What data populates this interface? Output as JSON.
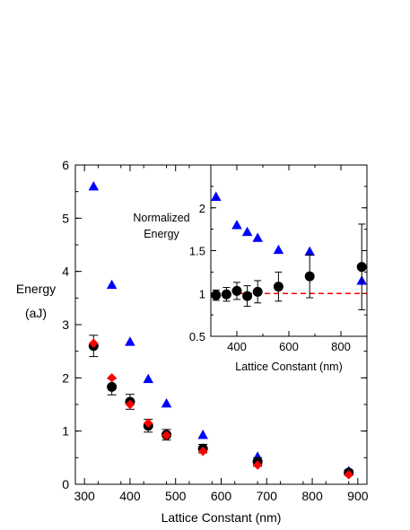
{
  "chart_data": [
    {
      "type": "scatter",
      "title": "",
      "xlabel": "Lattice Constant (nm)",
      "ylabel": [
        "Energy",
        "(aJ)"
      ],
      "xlim": [
        280,
        920
      ],
      "ylim": [
        0,
        6
      ],
      "xticks": [
        "300",
        "400",
        "500",
        "600",
        "700",
        "800",
        "900"
      ],
      "yticks": [
        "0",
        "1",
        "2",
        "3",
        "4",
        "5",
        "6"
      ],
      "grid": false,
      "series": [
        {
          "marker": "triangle",
          "color": "#0000ff",
          "x": [
            320,
            360,
            400,
            440,
            480,
            560,
            680,
            880
          ],
          "y": [
            5.6,
            3.75,
            2.68,
            1.98,
            1.52,
            0.93,
            0.52,
            0.25
          ]
        },
        {
          "marker": "circle",
          "color": "#000000",
          "x": [
            320,
            360,
            400,
            440,
            480,
            560,
            680,
            880
          ],
          "y": [
            2.6,
            1.83,
            1.55,
            1.1,
            0.93,
            0.67,
            0.42,
            0.22
          ],
          "err": [
            0.2,
            0.15,
            0.14,
            0.12,
            0.1,
            0.08,
            0.08,
            0.05
          ]
        },
        {
          "marker": "diamond",
          "color": "#ff0000",
          "x": [
            320,
            360,
            400,
            440,
            480,
            560,
            680,
            880
          ],
          "y": [
            2.65,
            2.0,
            1.5,
            1.15,
            0.92,
            0.62,
            0.36,
            0.18
          ]
        }
      ]
    },
    {
      "type": "scatter",
      "title": "",
      "xlabel": "Lattice Constant (nm)",
      "ylabel": [
        "Normalized",
        "Energy"
      ],
      "xlim": [
        300,
        900
      ],
      "ylim": [
        0.5,
        2.5
      ],
      "xticks": [
        "400",
        "600",
        "800"
      ],
      "yticks": [
        "0.5",
        "1",
        "1.5",
        "2"
      ],
      "grid": false,
      "reference_line": {
        "y": 1.0,
        "color": "#ff0000",
        "style": "dashed"
      },
      "series": [
        {
          "marker": "triangle",
          "color": "#0000ff",
          "x": [
            320,
            400,
            440,
            480,
            560,
            680,
            880
          ],
          "y": [
            2.13,
            1.8,
            1.72,
            1.65,
            1.51,
            1.49,
            1.15
          ]
        },
        {
          "marker": "circle",
          "color": "#000000",
          "x": [
            320,
            360,
            400,
            440,
            480,
            560,
            680,
            880
          ],
          "y": [
            0.98,
            0.99,
            1.03,
            0.97,
            1.02,
            1.08,
            1.2,
            1.31
          ],
          "err": [
            0.06,
            0.08,
            0.1,
            0.12,
            0.13,
            0.17,
            0.25,
            0.5
          ]
        }
      ]
    }
  ]
}
